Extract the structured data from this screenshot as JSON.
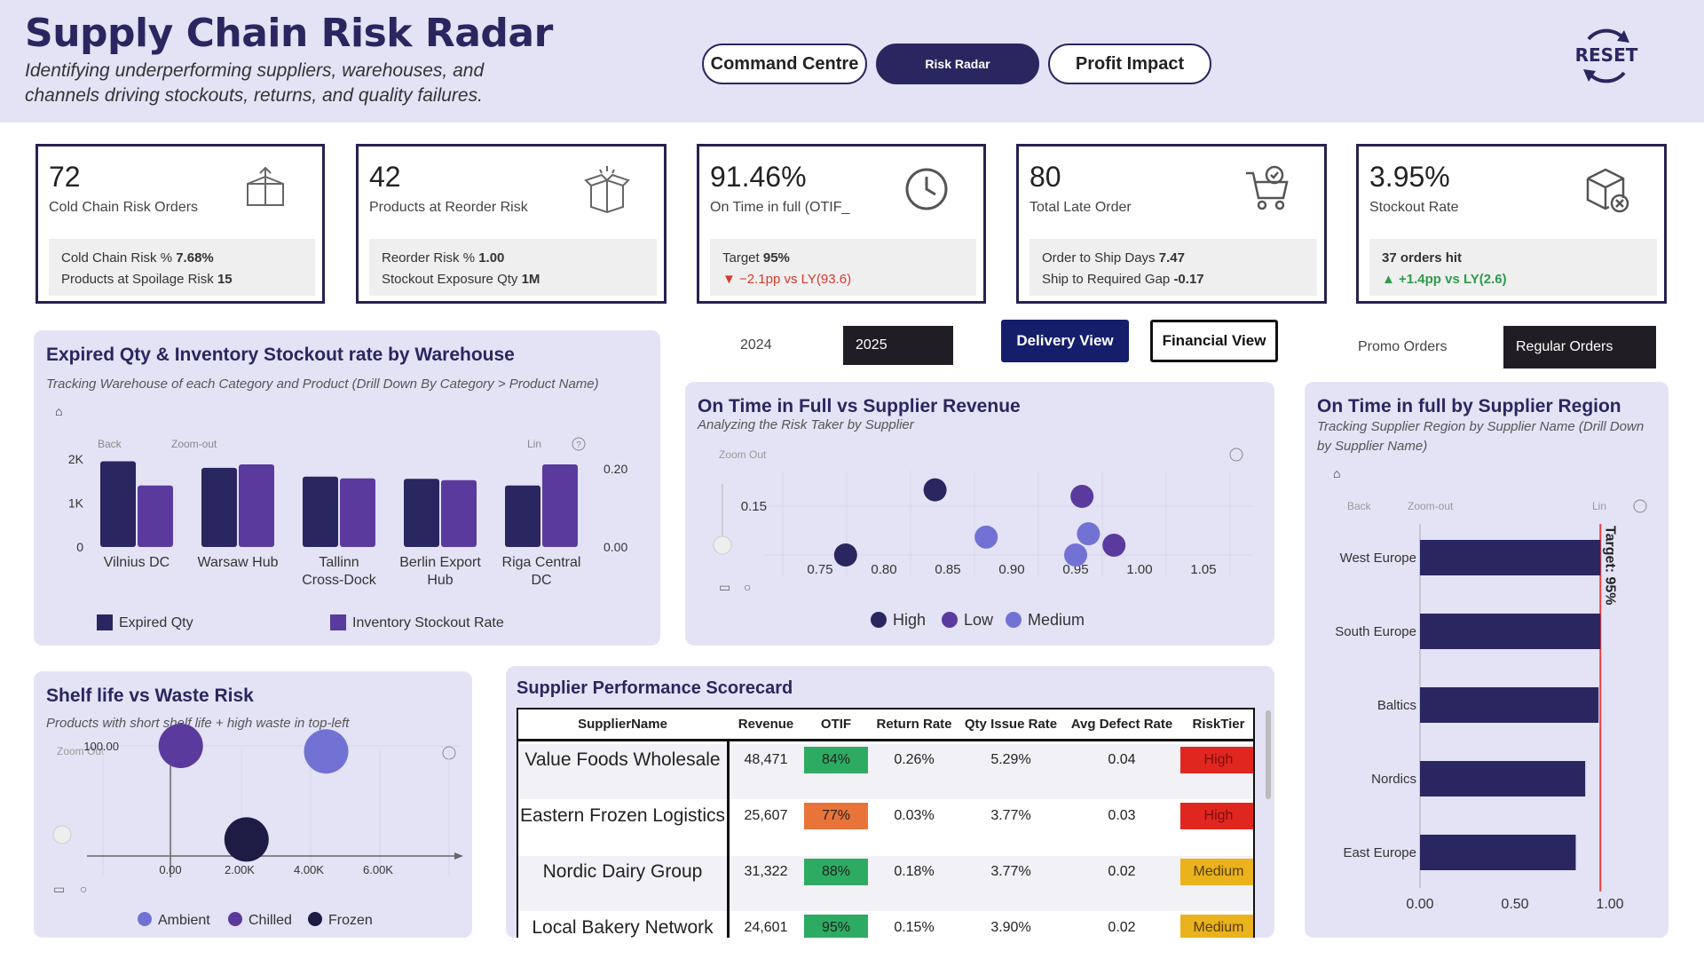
{
  "header": {
    "title": "Supply Chain Risk Radar",
    "subtitle": "Identifying underperforming suppliers, warehouses, and channels driving stockouts, returns, and quality failures.",
    "nav": [
      "Command Centre",
      "Risk Radar",
      "Profit Impact"
    ],
    "reset_label": "RESET"
  },
  "kpis": [
    {
      "value": "72",
      "label": "Cold Chain Risk Orders",
      "l1": "Cold Chain Risk %",
      "v1": "7.68%",
      "l2": "Products at Spoilage Risk",
      "v2": "15",
      "icon": "box-icon"
    },
    {
      "value": "42",
      "label": "Products at Reorder Risk",
      "l1": "Reorder Risk %",
      "v1": "1.00",
      "l2": "Stockout Exposure Qty",
      "v2": "1M",
      "icon": "open-box-icon"
    },
    {
      "value": "91.46%",
      "label": "On Time in full (OTIF_",
      "l1": "Target",
      "v1": "95%",
      "l2": "▼ −2.1pp vs LY(93.6)",
      "v2": "",
      "icon": "clock-icon"
    },
    {
      "value": "80",
      "label": "Total Late Order",
      "l1": "Order to Ship Days",
      "v1": "7.47",
      "l2": "Ship to Required Gap",
      "v2": "-0.17",
      "icon": "cart-icon"
    },
    {
      "value": "3.95%",
      "label": "Stockout Rate",
      "l1": "37 orders hit",
      "v1": "",
      "l2": "▲ +1.4pp vs LY(2.6)",
      "v2": "",
      "icon": "box-x-icon"
    }
  ],
  "filters": {
    "years": [
      "2024",
      "2025"
    ],
    "views": [
      "Delivery View",
      "Financial View"
    ],
    "orders": [
      "Promo Orders",
      "Regular Orders"
    ]
  },
  "warehouse_chart": {
    "title": "Expired Qty & Inventory Stockout rate by Warehouse",
    "subtitle": "Tracking Warehouse of each Category and Product (Drill Down By Category >  Product Name)",
    "back": "Back",
    "zoomout": "Zoom-out",
    "lin": "Lin",
    "legend": [
      "Expired Qty",
      "Inventory Stockout Rate"
    ]
  },
  "otif_scatter": {
    "title": "On Time in Full vs Supplier Revenue",
    "subtitle": "Analyzing the Risk Taker by Supplier",
    "zoomout": "Zoom Out",
    "legend": [
      "High",
      "Low",
      "Medium"
    ]
  },
  "region_chart": {
    "title": "On Time in full by Supplier Region",
    "subtitle": "Tracking Supplier Region by Supplier Name (Drill Down by Supplier Name)",
    "back": "Back",
    "zoomout": "Zoom-out",
    "lin": "Lin",
    "target_label": "Target: 95%"
  },
  "shelf_chart": {
    "title": "Shelf life vs Waste Risk",
    "subtitle": "Products with short shelf life + high waste in top-left",
    "zoomout": "Zoom Out",
    "legend": [
      "Ambient",
      "Chilled",
      "Frozen"
    ]
  },
  "scorecard": {
    "title": "Supplier Performance Scorecard",
    "columns": [
      "SupplierName",
      "Revenue",
      "OTIF",
      "Return Rate",
      "Qty Issue Rate",
      "Avg Defect Rate",
      "RiskTier"
    ],
    "rows": [
      [
        "Value Foods Wholesale",
        "48,471",
        "84%",
        "0.26%",
        "5.29%",
        "0.04",
        "High"
      ],
      [
        "Eastern Frozen Logistics",
        "25,607",
        "77%",
        "0.03%",
        "3.77%",
        "0.03",
        "High"
      ],
      [
        "Nordic Dairy Group",
        "31,322",
        "88%",
        "0.18%",
        "3.77%",
        "0.02",
        "Medium"
      ],
      [
        "Local Bakery Network",
        "24,601",
        "95%",
        "0.15%",
        "3.90%",
        "0.02",
        "Medium"
      ]
    ]
  },
  "colors": {
    "dark": "#2a2660",
    "purple": "#5b3a9e",
    "medium": "#7272d4",
    "green": "#2eab62",
    "orange": "#e8743a",
    "red": "#e0271f",
    "amber": "#eab21c"
  },
  "chart_data": [
    {
      "type": "bar",
      "title": "Expired Qty & Inventory Stockout rate by Warehouse",
      "categories": [
        "Vilnius DC",
        "Warsaw Hub",
        "Tallinn Cross-Dock",
        "Berlin Export Hub",
        "Riga Central DC"
      ],
      "series": [
        {
          "name": "Expired Qty",
          "values": [
            1950,
            1800,
            1600,
            1550,
            1400
          ]
        },
        {
          "name": "Inventory Stockout Rate",
          "values": [
            0.175,
            0.235,
            0.195,
            0.19,
            0.235
          ]
        }
      ],
      "ylim": [
        0,
        2000
      ],
      "y2lim": [
        0,
        0.25
      ],
      "yticks": [
        "0",
        "1K",
        "2K"
      ],
      "y2ticks": [
        "0.00",
        "0.20"
      ]
    },
    {
      "type": "scatter",
      "title": "On Time in Full vs Supplier Revenue",
      "xticks": [
        "0.75",
        "0.80",
        "0.85",
        "0.90",
        "0.95",
        "1.00",
        "1.05"
      ],
      "yticks": [
        "0.15"
      ],
      "xlim": [
        0.7,
        1.08
      ],
      "ylim": [
        0,
        0.3
      ],
      "series": [
        {
          "name": "High",
          "points": [
            [
              0.77,
              0.0
            ],
            [
              0.84,
              0.2
            ]
          ]
        },
        {
          "name": "Low",
          "points": [
            [
              0.955,
              0.18
            ],
            [
              0.98,
              0.03
            ]
          ]
        },
        {
          "name": "Medium",
          "points": [
            [
              0.88,
              0.055
            ],
            [
              0.96,
              0.065
            ],
            [
              0.95,
              0.0
            ]
          ]
        }
      ]
    },
    {
      "type": "bar",
      "orientation": "horizontal",
      "title": "On Time in full by Supplier Region",
      "categories": [
        "West Europe",
        "South Europe",
        "Baltics",
        "Nordics",
        "East Europe"
      ],
      "values": [
        0.95,
        0.95,
        0.94,
        0.87,
        0.82
      ],
      "xticks": [
        "0.00",
        "0.50",
        "1.00"
      ],
      "target": 0.95
    },
    {
      "type": "scatter",
      "title": "Shelf life vs Waste Risk",
      "xticks": [
        "0.00",
        "2.00K",
        "4.00K",
        "6.00K"
      ],
      "yticks": [
        "100.00"
      ],
      "series": [
        {
          "name": "Ambient",
          "points": [
            [
              4500,
              95
            ]
          ]
        },
        {
          "name": "Chilled",
          "points": [
            [
              300,
              100
            ]
          ]
        },
        {
          "name": "Frozen",
          "points": [
            [
              2200,
              15
            ]
          ]
        }
      ]
    }
  ]
}
